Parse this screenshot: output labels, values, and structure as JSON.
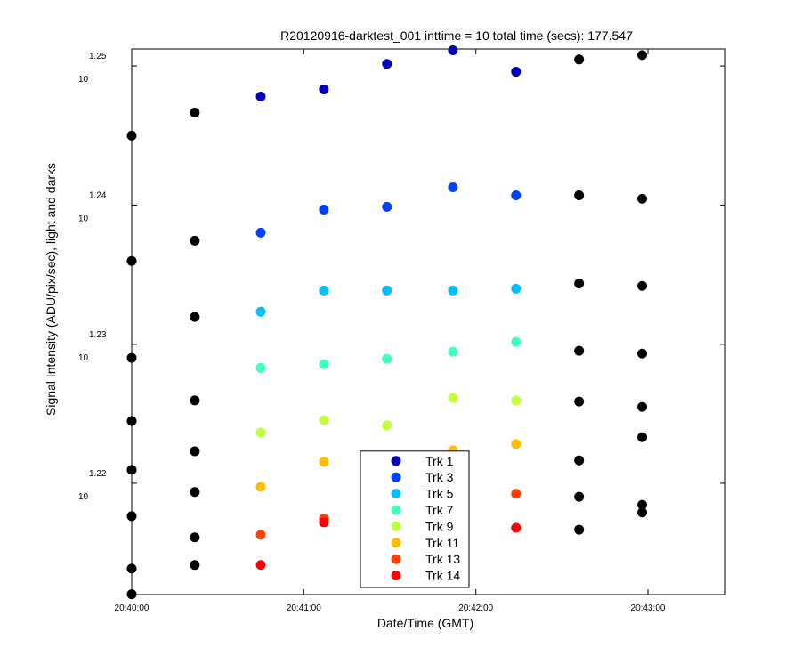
{
  "chart_data": {
    "type": "scatter",
    "title": "R20120916-darktest_001 inttime = 10 total time (secs): 177.547",
    "x_label": "Date/Time (GMT)",
    "y_label": "Signal Intensity (ADU/pix/sec), light and darks",
    "x": [
      "20:40:00",
      "20:40:22",
      "20:40:45",
      "20:41:07",
      "20:41:29",
      "20:41:52",
      "20:42:14",
      "20:42:36",
      "20:42:58"
    ],
    "xlim": [
      "20:40:00",
      "20:43:27"
    ],
    "xticks": [
      "20:40:00",
      "20:41:00",
      "20:42:00",
      "20:43:00"
    ],
    "ylim": [
      16.293,
      17.833
    ],
    "yscale": "log",
    "yticks": [
      {
        "value": 16.596,
        "label": "10",
        "exponent": "1.22"
      },
      {
        "value": 16.982,
        "label": "10",
        "exponent": "1.23"
      },
      {
        "value": 17.378,
        "label": "10",
        "exponent": "1.24"
      },
      {
        "value": 17.783,
        "label": "10",
        "exponent": "1.25"
      }
    ],
    "grid": false,
    "legend": "bottom",
    "series": [
      {
        "color": "#000000",
        "values": [
          17.579,
          17.646,
          null,
          null,
          null,
          null,
          null,
          17.802,
          17.815
        ]
      },
      {
        "color": "#000000",
        "values": [
          17.218,
          17.276,
          null,
          null,
          null,
          null,
          null,
          17.406,
          17.396
        ]
      },
      {
        "color": "#000000",
        "values": [
          16.944,
          17.059,
          null,
          null,
          null,
          null,
          null,
          17.154,
          17.147
        ]
      },
      {
        "color": "#000000",
        "values": [
          16.768,
          16.825,
          null,
          null,
          null,
          null,
          null,
          16.964,
          16.956
        ]
      },
      {
        "color": "#000000",
        "values": [
          16.633,
          16.684,
          null,
          null,
          null,
          null,
          null,
          16.822,
          16.807
        ]
      },
      {
        "color": "#000000",
        "values": [
          16.506,
          16.572,
          null,
          null,
          null,
          null,
          null,
          16.659,
          16.723
        ]
      },
      {
        "color": "#000000",
        "values": [
          16.363,
          16.448,
          null,
          null,
          null,
          null,
          null,
          16.559,
          16.537
        ]
      },
      {
        "color": "#000000",
        "values": [
          16.294,
          16.373,
          null,
          null,
          null,
          null,
          null,
          16.469,
          16.516
        ]
      },
      {
        "name": "Trk 1",
        "color": "#0000b8",
        "values": [
          null,
          null,
          17.693,
          17.714,
          17.789,
          17.829,
          17.766,
          null,
          null
        ]
      },
      {
        "name": "Trk 3",
        "color": "#0040ff",
        "values": [
          null,
          null,
          17.299,
          17.365,
          17.373,
          17.429,
          17.406,
          null,
          null
        ]
      },
      {
        "name": "Trk 5",
        "color": "#00bfff",
        "values": [
          null,
          null,
          17.074,
          17.134,
          17.134,
          17.134,
          17.139,
          null,
          null
        ]
      },
      {
        "name": "Trk 7",
        "color": "#40ffbf",
        "values": [
          null,
          null,
          16.916,
          16.926,
          16.941,
          16.961,
          16.989,
          null,
          null
        ]
      },
      {
        "name": "Trk 9",
        "color": "#bfff40",
        "values": [
          null,
          null,
          16.736,
          16.77,
          16.756,
          16.832,
          16.825,
          null,
          null
        ]
      },
      {
        "name": "Trk 11",
        "color": "#ffbf00",
        "values": [
          null,
          null,
          16.586,
          16.655,
          null,
          16.687,
          16.704,
          null,
          null
        ]
      },
      {
        "name": "Trk 13",
        "color": "#ff4000",
        "values": [
          null,
          null,
          16.455,
          16.499,
          null,
          null,
          16.567,
          null,
          null
        ]
      },
      {
        "name": "Trk 14",
        "color": "#ff0000",
        "values": [
          null,
          null,
          16.373,
          16.489,
          null,
          null,
          16.474,
          null,
          null
        ]
      }
    ]
  }
}
